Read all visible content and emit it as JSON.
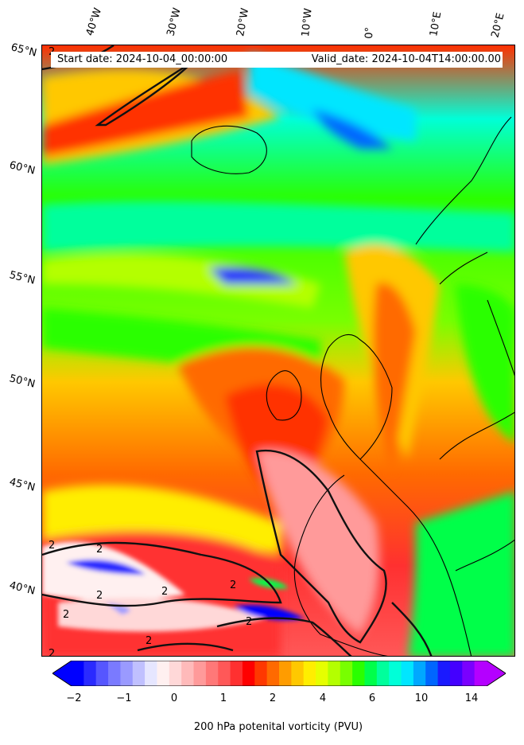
{
  "header": {
    "start_date": "Start date: 2024-10-04_00:00:00",
    "valid_date": "Valid_date: 2024-10-04T14:00:00.00"
  },
  "axes": {
    "lon_labels": [
      "40°W",
      "30°W",
      "20°W",
      "10°W",
      "0°",
      "10°E",
      "20°E"
    ],
    "lat_labels": [
      "65°N",
      "60°N",
      "55°N",
      "50°N",
      "45°N",
      "40°N"
    ]
  },
  "contour": {
    "level_label": "2"
  },
  "colorbar": {
    "label": "200 hPa potenital vorticity (PVU)",
    "tick_labels": [
      "−2",
      "−1",
      "0",
      "1",
      "2",
      "4",
      "6",
      "10",
      "14"
    ],
    "colors": [
      "#0000ff",
      "#2a2aff",
      "#5656ff",
      "#7a7aff",
      "#9a9aff",
      "#c0c0ff",
      "#e6e6ff",
      "#fff0f0",
      "#ffd8d8",
      "#ffbaba",
      "#ff9a9a",
      "#ff7878",
      "#ff5858",
      "#ff3030",
      "#ff0000",
      "#ff3800",
      "#ff6a00",
      "#ff9c00",
      "#ffc800",
      "#ffee00",
      "#e6ff00",
      "#b4ff00",
      "#78ff00",
      "#2aff00",
      "#00ff4a",
      "#00ff9c",
      "#00ffd8",
      "#00e6ff",
      "#00a8ff",
      "#0066ff",
      "#1a1aff",
      "#4400ff",
      "#7a00ff",
      "#b400ff"
    ]
  }
}
